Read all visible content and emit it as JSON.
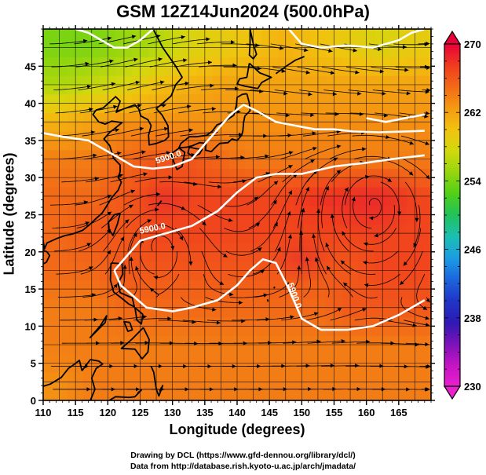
{
  "title": "GSM 12Z14Jun2024 (500.0hPa)",
  "xlabel": "Longitude (degrees)",
  "ylabel": "Latitude  (degrees)",
  "credits": [
    "Drawing by DCL (https://www.gfd-dennou.org/library/dcl/)",
    "Data from http://database.rish.kyoto-u.ac.jp/arch/jmadata/"
  ],
  "x_ticks": [
    "110",
    "115",
    "120",
    "125",
    "130",
    "135",
    "140",
    "145",
    "150",
    "155",
    "160",
    "165"
  ],
  "y_ticks": [
    "0",
    "5",
    "10",
    "15",
    "20",
    "25",
    "30",
    "35",
    "40",
    "45"
  ],
  "colorbar": {
    "labels": [
      "270",
      "262",
      "254",
      "246",
      "238",
      "230"
    ],
    "colors": [
      "#e8003a",
      "#f03c1e",
      "#f26a17",
      "#f49a12",
      "#f2c20f",
      "#d2d80e",
      "#96d60e",
      "#4fd019",
      "#21c25a",
      "#1bbfb2",
      "#1b9de4",
      "#1c65dd",
      "#1f36c8",
      "#2c1ab4",
      "#7a12b8",
      "#c414c3",
      "#ea1fce"
    ]
  },
  "contour_labels": [
    "5900.0",
    "5900.0",
    "5900.0"
  ],
  "chart_data": {
    "type": "heatmap",
    "title": "GSM 12Z14Jun2024 (500.0hPa)",
    "xlabel": "Longitude (degrees)",
    "ylabel": "Latitude  (degrees)",
    "xlim": [
      110,
      170
    ],
    "ylim": [
      0,
      50
    ],
    "colorbar_range": [
      230,
      270
    ],
    "contour_level": 5900.0,
    "field_rows": [
      {
        "lat": 47.5,
        "values": [
          254,
          254,
          255,
          256,
          258,
          259,
          260,
          261,
          260,
          259,
          258,
          259
        ]
      },
      {
        "lat": 42.5,
        "values": [
          256,
          257,
          258,
          260,
          261,
          262,
          262,
          262,
          262,
          262,
          262,
          262
        ]
      },
      {
        "lat": 37.5,
        "values": [
          261,
          262,
          263,
          263,
          263,
          263,
          263,
          263,
          263,
          263,
          263,
          263
        ]
      },
      {
        "lat": 32.5,
        "values": [
          264,
          264,
          265,
          266,
          266,
          265,
          264,
          264,
          264,
          264,
          264,
          264
        ]
      },
      {
        "lat": 27.5,
        "values": [
          265,
          265,
          266,
          267,
          267,
          267,
          267,
          267,
          268,
          268,
          268,
          267
        ]
      },
      {
        "lat": 22.5,
        "values": [
          265,
          266,
          266,
          267,
          267,
          267,
          267,
          267,
          267,
          267,
          267,
          267
        ]
      },
      {
        "lat": 17.5,
        "values": [
          265,
          265,
          266,
          266,
          266,
          266,
          266,
          266,
          266,
          266,
          267,
          267
        ]
      },
      {
        "lat": 12.5,
        "values": [
          264,
          264,
          265,
          265,
          265,
          265,
          265,
          265,
          265,
          266,
          266,
          266
        ]
      },
      {
        "lat": 7.5,
        "values": [
          264,
          264,
          264,
          264,
          264,
          264,
          264,
          264,
          264,
          264,
          264,
          264
        ]
      },
      {
        "lat": 2.5,
        "values": [
          263,
          264,
          264,
          264,
          264,
          264,
          264,
          264,
          264,
          264,
          264,
          264
        ]
      }
    ],
    "contours": [
      {
        "name": "5900.0",
        "points": [
          [
            110,
            36
          ],
          [
            113,
            35.5
          ],
          [
            117,
            35
          ],
          [
            121,
            33
          ],
          [
            124,
            31.5
          ],
          [
            127,
            31.2
          ],
          [
            130,
            31.5
          ],
          [
            133,
            32.5
          ],
          [
            135,
            34.5
          ],
          [
            137,
            36.5
          ],
          [
            139,
            38.5
          ],
          [
            141,
            39.8
          ],
          [
            143,
            39
          ],
          [
            146,
            37.5
          ],
          [
            149,
            37
          ],
          [
            152,
            36.5
          ],
          [
            155,
            36.5
          ],
          [
            158,
            36.2
          ],
          [
            162,
            36.1
          ],
          [
            166,
            36.2
          ],
          [
            169,
            36.3
          ]
        ]
      },
      {
        "name": "5900.0",
        "points": [
          [
            115,
            50
          ],
          [
            117,
            49.5
          ],
          [
            119,
            48.5
          ],
          [
            121,
            47.5
          ],
          [
            123,
            47.5
          ],
          [
            125,
            48.5
          ],
          [
            127,
            50
          ]
        ]
      },
      {
        "name": "5900.0",
        "points": [
          [
            148,
            50
          ],
          [
            150,
            48
          ],
          [
            153,
            47.5
          ],
          [
            157,
            47.8
          ],
          [
            161,
            47.5
          ],
          [
            165,
            48.5
          ],
          [
            167,
            49.5
          ],
          [
            169,
            50
          ]
        ]
      },
      {
        "name": "5900.0",
        "points": [
          [
            160,
            38
          ],
          [
            163,
            37.5
          ],
          [
            166,
            38
          ],
          [
            169,
            38.5
          ]
        ]
      },
      {
        "name": "5900.0",
        "points": [
          [
            121,
            17.5
          ],
          [
            123,
            19.5
          ],
          [
            125,
            21.5
          ],
          [
            129,
            22.5
          ],
          [
            133,
            23.5
          ],
          [
            137,
            25.5
          ],
          [
            140,
            28
          ],
          [
            143,
            30
          ],
          [
            146,
            30.5
          ],
          [
            150,
            30.5
          ],
          [
            155,
            31.5
          ],
          [
            160,
            32
          ],
          [
            164,
            32.5
          ],
          [
            169,
            33
          ]
        ]
      },
      {
        "name": "5900.0",
        "points": [
          [
            121,
            17.5
          ],
          [
            122,
            15.5
          ],
          [
            124,
            14
          ],
          [
            126,
            12.5
          ],
          [
            130,
            12
          ],
          [
            133,
            12.5
          ],
          [
            137,
            13.5
          ],
          [
            140,
            15.5
          ],
          [
            142,
            17.5
          ],
          [
            144,
            19
          ],
          [
            146,
            18.5
          ],
          [
            148,
            15
          ],
          [
            150,
            11
          ],
          [
            153,
            9.5
          ],
          [
            157,
            9.5
          ],
          [
            161,
            10
          ],
          [
            165,
            11.5
          ],
          [
            169,
            13.5
          ]
        ]
      }
    ]
  }
}
